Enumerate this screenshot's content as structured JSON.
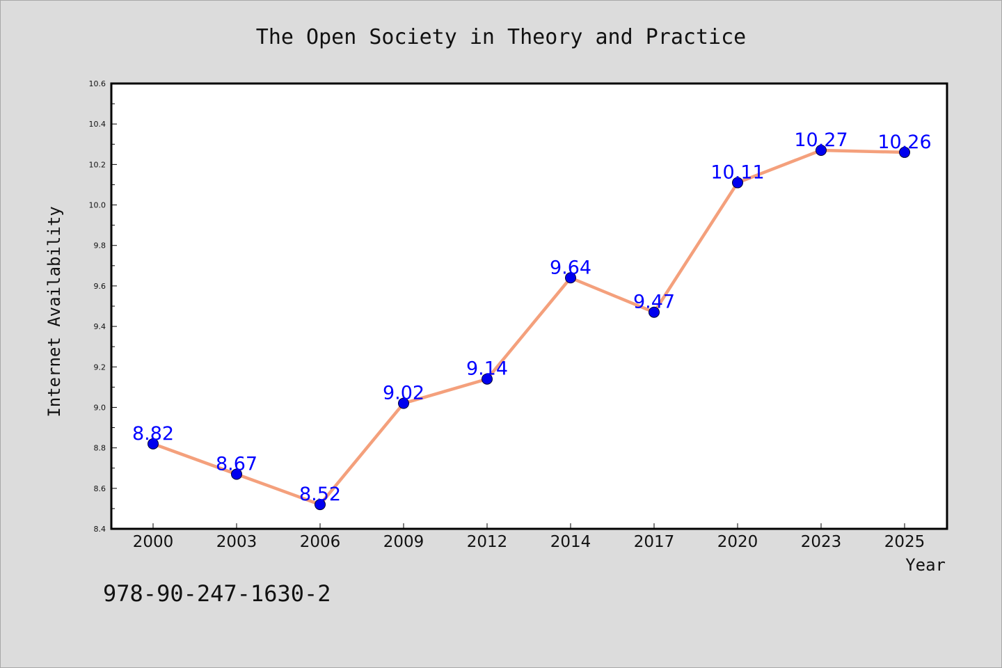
{
  "chart_data": {
    "type": "line",
    "title": "The Open Society in Theory and Practice",
    "xlabel": "Year",
    "ylabel": "Internet Availability",
    "categories": [
      "2000",
      "2003",
      "2006",
      "2009",
      "2012",
      "2014",
      "2017",
      "2020",
      "2023",
      "2025"
    ],
    "series": [
      {
        "values": [
          8.82,
          8.67,
          8.52,
          9.02,
          9.14,
          9.64,
          9.47,
          10.11,
          10.27,
          10.26
        ],
        "labels": [
          "8.82",
          "8.67",
          "8.52",
          "9.02",
          "9.14",
          "9.64",
          "9.47",
          "10.11",
          "10.27",
          "10.26"
        ],
        "line_color": "#f4a07c",
        "marker_color": "#0000ee",
        "label_color": "#0000ff"
      }
    ],
    "ylim": [
      8.4,
      10.6
    ],
    "yticks": [
      "8.4",
      "8.6",
      "8.8",
      "9.0",
      "9.2",
      "9.4",
      "9.6",
      "9.8",
      "10.0",
      "10.2",
      "10.4",
      "10.6"
    ],
    "ytick_values": [
      8.4,
      8.6,
      8.8,
      9.0,
      9.2,
      9.4,
      9.6,
      9.8,
      10.0,
      10.2,
      10.4,
      10.6
    ],
    "grid": false,
    "legend": "none"
  },
  "footer": {
    "isbn": "978-90-247-1630-2"
  }
}
